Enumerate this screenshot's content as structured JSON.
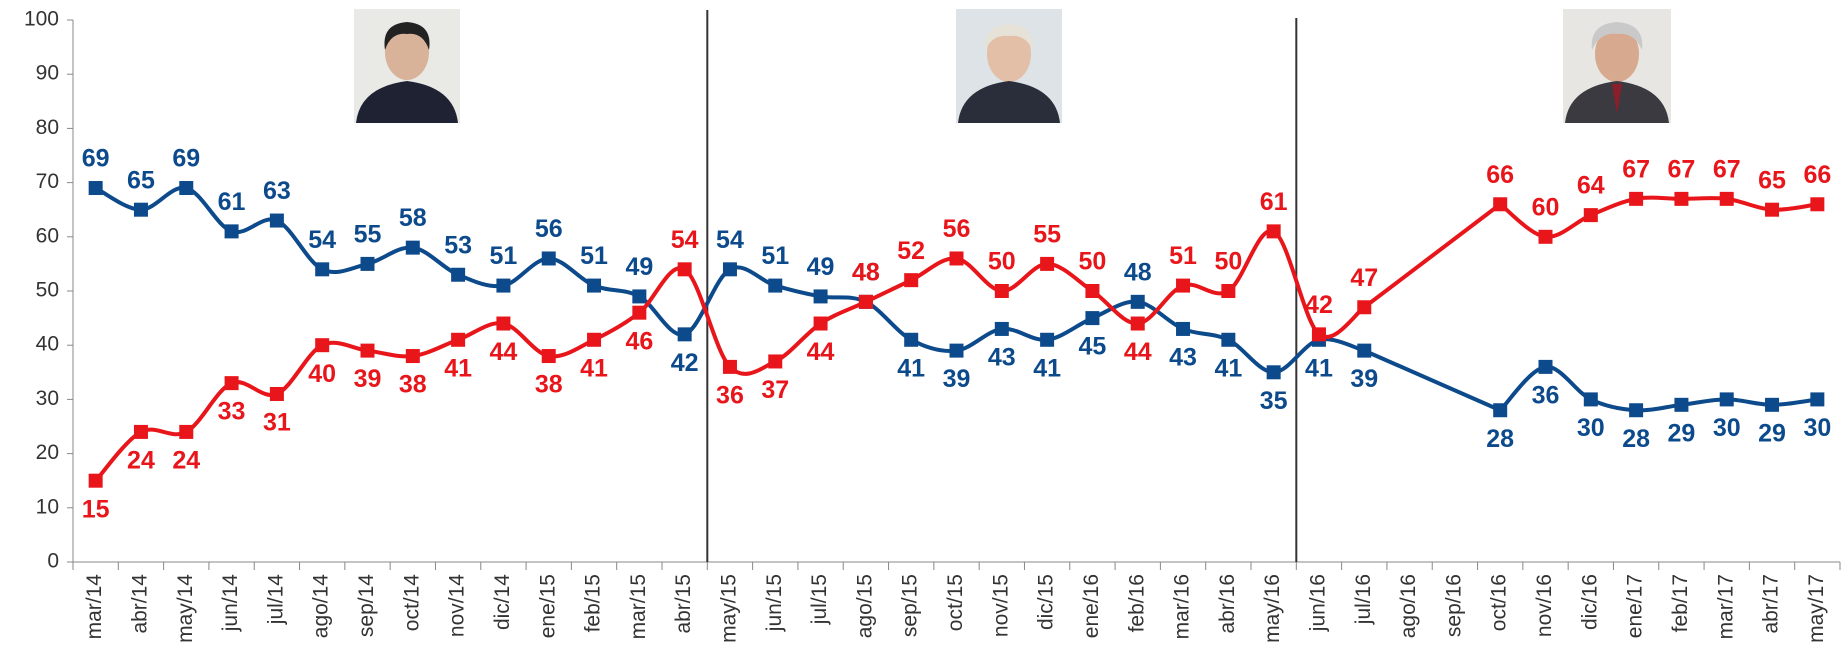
{
  "chart_data": {
    "type": "line",
    "categories": [
      "mar/14",
      "abr/14",
      "may/14",
      "jun/14",
      "jul/14",
      "ago/14",
      "sep/14",
      "oct/14",
      "nov/14",
      "dic/14",
      "ene/15",
      "feb/15",
      "mar/15",
      "abr/15",
      "may/15",
      "jun/15",
      "jul/15",
      "ago/15",
      "sep/15",
      "oct/15",
      "nov/15",
      "dic/15",
      "ene/16",
      "feb/16",
      "mar/16",
      "abr/16",
      "may/16",
      "jun/16",
      "jul/16",
      "ago/16",
      "sep/16",
      "oct/16",
      "nov/16",
      "dic/16",
      "ene/17",
      "feb/17",
      "mar/17",
      "abr/17",
      "may/17"
    ],
    "series": [
      {
        "color": "#0d4a8c",
        "values": [
          69,
          65,
          69,
          61,
          63,
          54,
          55,
          58,
          53,
          51,
          56,
          51,
          49,
          42,
          54,
          51,
          49,
          48,
          41,
          39,
          43,
          41,
          45,
          48,
          43,
          41,
          35,
          41,
          39,
          null,
          null,
          28,
          36,
          30,
          28,
          29,
          30,
          29,
          30
        ]
      },
      {
        "color": "#e8161b",
        "values": [
          15,
          24,
          24,
          33,
          31,
          40,
          39,
          38,
          41,
          44,
          38,
          41,
          46,
          54,
          36,
          37,
          44,
          48,
          52,
          56,
          50,
          55,
          50,
          44,
          51,
          50,
          61,
          42,
          47,
          null,
          null,
          66,
          60,
          64,
          67,
          67,
          67,
          65,
          66
        ]
      }
    ],
    "ylim": [
      0,
      100
    ],
    "yticks": [
      0,
      10,
      20,
      30,
      40,
      50,
      60,
      70,
      80,
      90,
      100
    ]
  }
}
